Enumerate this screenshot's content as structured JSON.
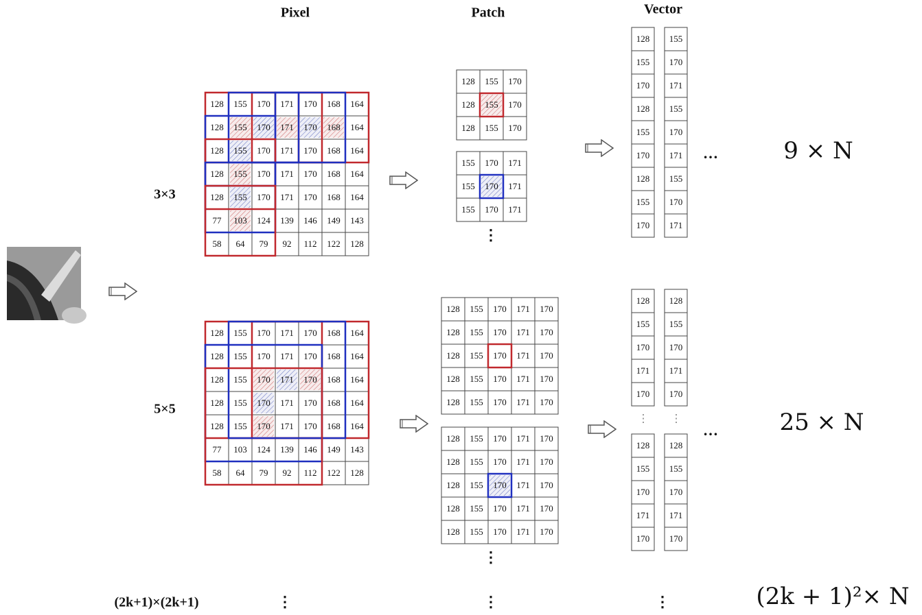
{
  "headers": {
    "pixel": "Pixel",
    "patch": "Patch",
    "vector": "Vector"
  },
  "ellipsis": {
    "vertical": "⋮",
    "horizontal": "…"
  },
  "rows": [
    {
      "label": "3×3",
      "pixel_grid": [
        [
          128,
          155,
          170,
          171,
          170,
          168,
          164
        ],
        [
          128,
          155,
          170,
          171,
          170,
          168,
          164
        ],
        [
          128,
          155,
          170,
          171,
          170,
          168,
          164
        ],
        [
          128,
          155,
          170,
          171,
          170,
          168,
          164
        ],
        [
          128,
          155,
          170,
          171,
          170,
          168,
          164
        ],
        [
          77,
          103,
          124,
          139,
          146,
          149,
          143
        ],
        [
          58,
          64,
          79,
          92,
          112,
          122,
          128
        ]
      ],
      "patches": [
        [
          [
            128,
            155,
            170
          ],
          [
            128,
            155,
            170
          ],
          [
            128,
            155,
            170
          ]
        ],
        [
          [
            155,
            170,
            171
          ],
          [
            155,
            170,
            171
          ],
          [
            155,
            170,
            171
          ]
        ]
      ],
      "vectors": [
        [
          128,
          155,
          170,
          128,
          155,
          170,
          128,
          155,
          170
        ],
        [
          155,
          170,
          171,
          155,
          170,
          171,
          155,
          170,
          171
        ]
      ],
      "size": "9 × N"
    },
    {
      "label": "5×5",
      "pixel_grid": [
        [
          128,
          155,
          170,
          171,
          170,
          168,
          164
        ],
        [
          128,
          155,
          170,
          171,
          170,
          168,
          164
        ],
        [
          128,
          155,
          170,
          171,
          170,
          168,
          164
        ],
        [
          128,
          155,
          170,
          171,
          170,
          168,
          164
        ],
        [
          128,
          155,
          170,
          171,
          170,
          168,
          164
        ],
        [
          77,
          103,
          124,
          139,
          146,
          149,
          143
        ],
        [
          58,
          64,
          79,
          92,
          112,
          122,
          128
        ]
      ],
      "patches": [
        [
          [
            128,
            155,
            170,
            171,
            170
          ],
          [
            128,
            155,
            170,
            171,
            170
          ],
          [
            128,
            155,
            170,
            171,
            170
          ],
          [
            128,
            155,
            170,
            171,
            170
          ],
          [
            128,
            155,
            170,
            171,
            170
          ]
        ],
        [
          [
            128,
            155,
            170,
            171,
            170
          ],
          [
            128,
            155,
            170,
            171,
            170
          ],
          [
            128,
            155,
            170,
            171,
            170
          ],
          [
            128,
            155,
            170,
            171,
            170
          ],
          [
            128,
            155,
            170,
            171,
            170
          ]
        ]
      ],
      "vectors": [
        {
          "top": [
            128,
            155,
            170,
            171,
            170
          ],
          "bottom": [
            128,
            155,
            170,
            171,
            170
          ]
        },
        {
          "top": [
            128,
            155,
            170,
            171,
            170
          ],
          "bottom": [
            128,
            155,
            170,
            171,
            170
          ]
        }
      ],
      "size": "25 × N"
    },
    {
      "label": "(2k+1)×(2k+1)",
      "size": "(2k + 1)²× N"
    }
  ]
}
